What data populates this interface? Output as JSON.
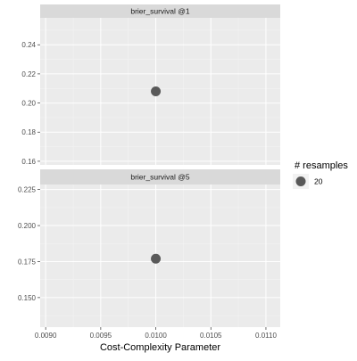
{
  "chart_data": {
    "type": "scatter",
    "xlabel": "Cost-Complexity Parameter",
    "xlim": [
      0.00895,
      0.01113
    ],
    "x_ticks": [
      {
        "value": 0.009,
        "label": "0.0090"
      },
      {
        "value": 0.0095,
        "label": "0.0095"
      },
      {
        "value": 0.01,
        "label": "0.0100"
      },
      {
        "value": 0.0105,
        "label": "0.0105"
      },
      {
        "value": 0.011,
        "label": "0.0110"
      }
    ],
    "facets": [
      {
        "label": "brier_survival @1",
        "ylim": [
          0.1575,
          0.2585
        ],
        "y_ticks": [
          {
            "value": 0.16,
            "label": "0.16"
          },
          {
            "value": 0.18,
            "label": "0.18"
          },
          {
            "value": 0.2,
            "label": "0.20"
          },
          {
            "value": 0.22,
            "label": "0.22"
          },
          {
            "value": 0.24,
            "label": "0.24"
          }
        ],
        "points": [
          {
            "x": 0.01,
            "y": 0.208,
            "resamples": 20
          }
        ]
      },
      {
        "label": "brier_survival @5",
        "ylim": [
          0.1295,
          0.2285
        ],
        "y_ticks": [
          {
            "value": 0.15,
            "label": "0.150"
          },
          {
            "value": 0.175,
            "label": "0.175"
          },
          {
            "value": 0.2,
            "label": "0.200"
          },
          {
            "value": 0.225,
            "label": "0.225"
          }
        ],
        "points": [
          {
            "x": 0.01,
            "y": 0.177,
            "resamples": 20
          }
        ]
      }
    ],
    "legend": {
      "title": "# resamples",
      "entries": [
        {
          "label": "20",
          "resamples": 20
        }
      ],
      "position": "right"
    },
    "grid": true,
    "colors": {
      "panel_background": "#ebebeb",
      "strip_background": "#d9d9d9",
      "grid_major": "#ffffff",
      "point": "#595959"
    }
  }
}
